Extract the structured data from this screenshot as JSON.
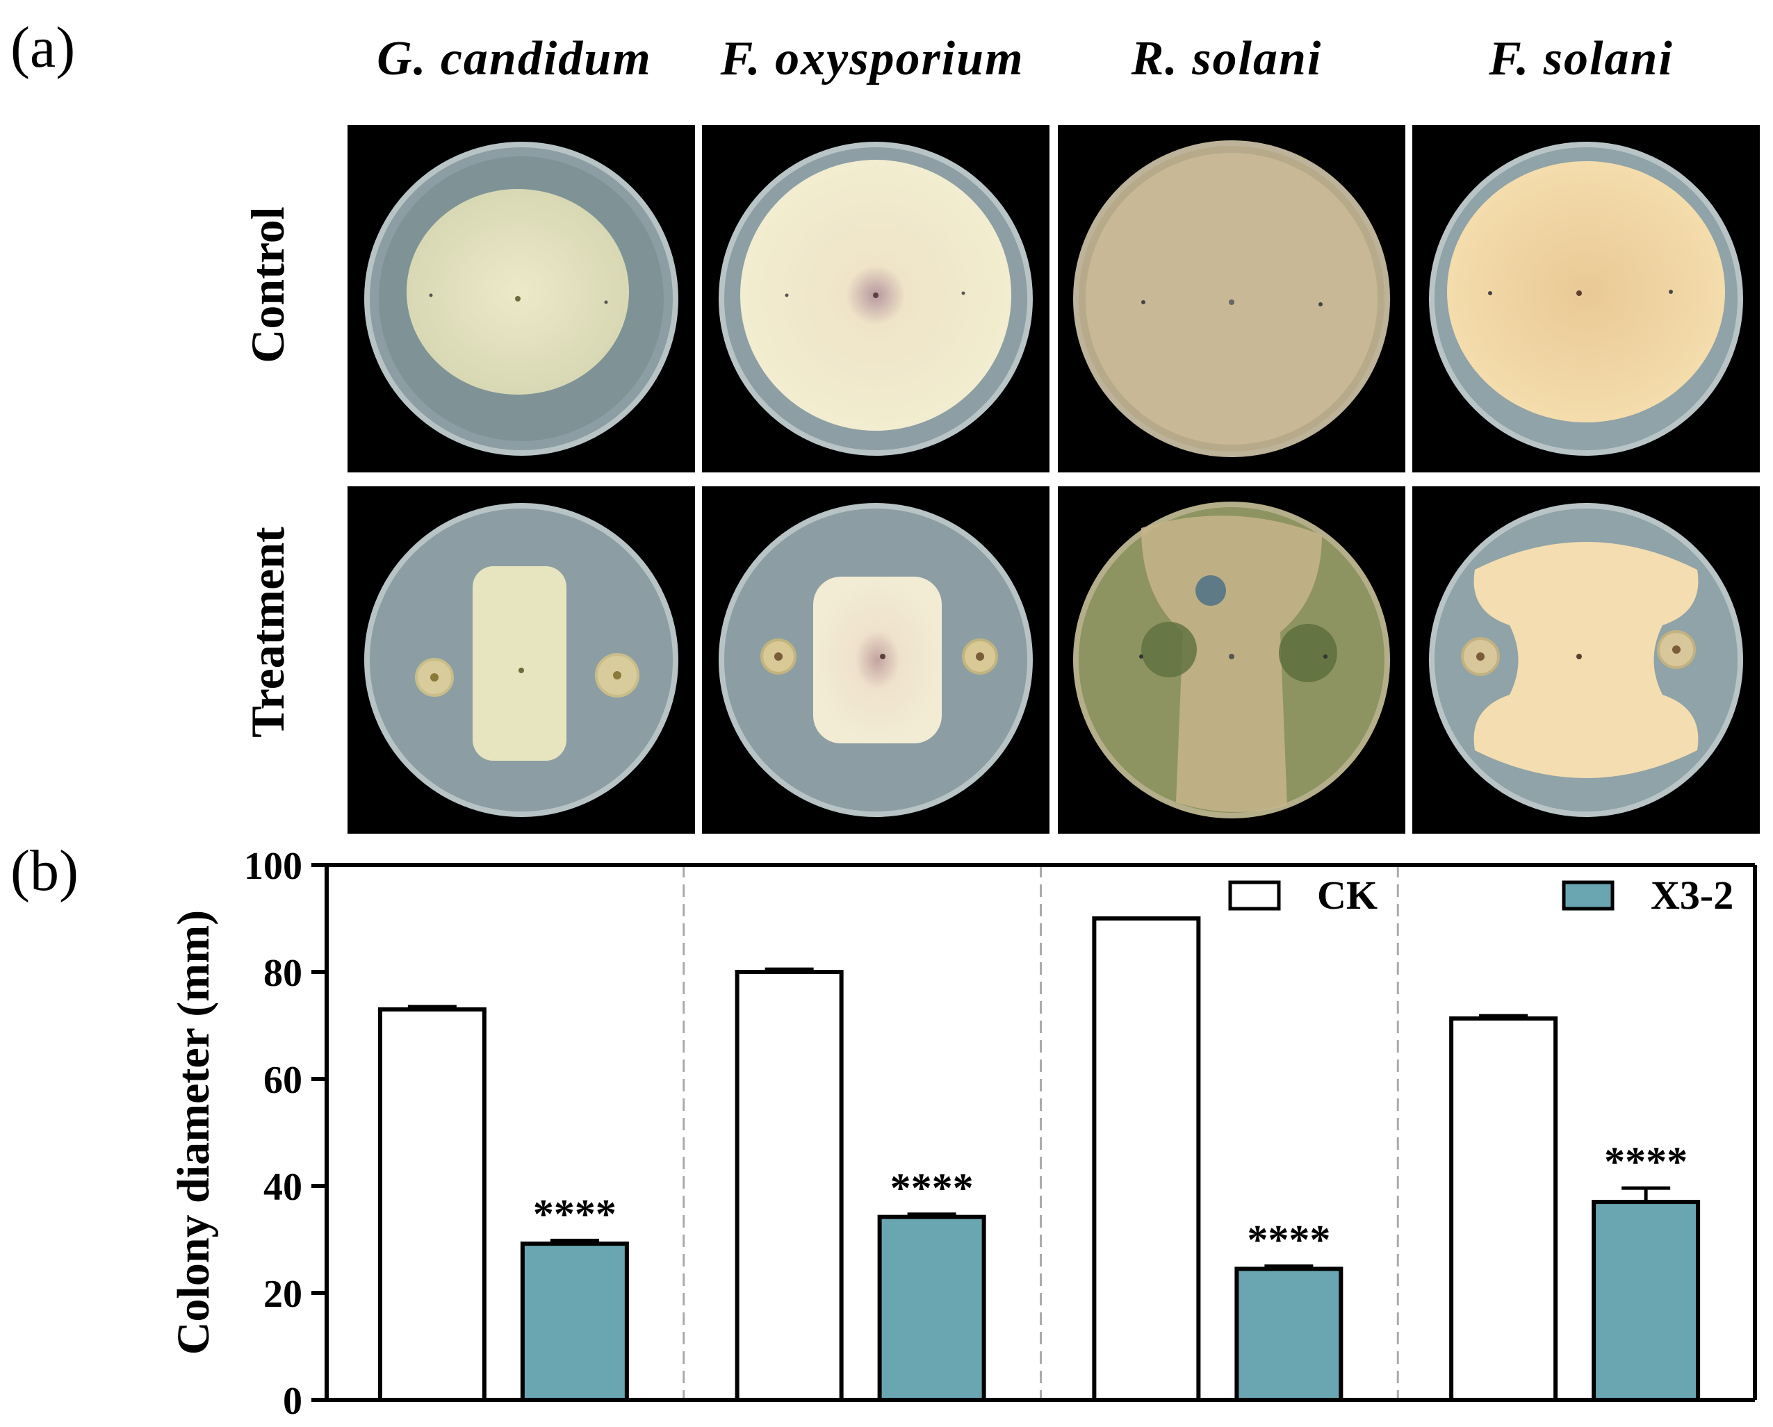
{
  "panel_a_label": "(a)",
  "panel_b_label": "(b)",
  "species": [
    "G. candidum",
    "F. oxysporium",
    "R. solani",
    "F. solani"
  ],
  "row_labels": [
    "Control",
    "Treatment"
  ],
  "colors": {
    "ck_fill": "#ffffff",
    "x32_fill": "#6aa6b1",
    "stroke": "#000000",
    "divider": "#aaaaaa"
  },
  "chart_data": {
    "type": "bar",
    "categories": [
      "G. candidum",
      "F. oxysporium",
      "R. solani",
      "F. solani"
    ],
    "ylabel": "Colony diameter (mm)",
    "ylim": [
      0,
      100
    ],
    "yticks": [
      0,
      20,
      40,
      60,
      80,
      100
    ],
    "legend_placement": "top-right",
    "series": [
      {
        "name": "CK",
        "values": [
          73,
          80,
          90,
          71.3
        ],
        "errors": [
          0.5,
          0.5,
          0,
          0.5
        ]
      },
      {
        "name": "X3-2",
        "values": [
          29.2,
          34.2,
          24.5,
          37
        ],
        "errors": [
          0.6,
          0.5,
          0.5,
          2.6
        ]
      }
    ],
    "annotations": [
      "****",
      "****",
      "****",
      "****"
    ]
  }
}
